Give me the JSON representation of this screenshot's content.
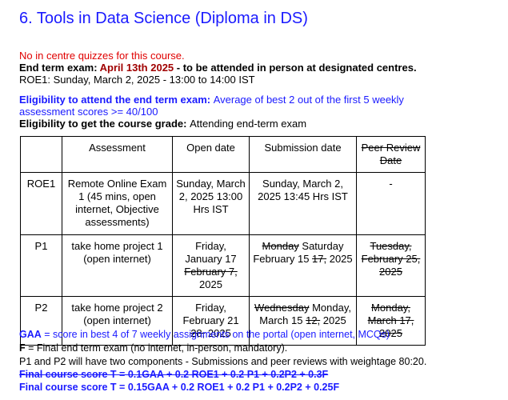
{
  "title": "6. Tools in Data Science (Diploma in DS)",
  "notice_no_quiz": "No in centre quizzes for this course.",
  "end_term": {
    "label": "End term exam: ",
    "date": "April 13th 2025",
    "rest": " - to be attended in person at designated centres."
  },
  "roe1_line": "ROE1: Sunday, March 2, 2025 -  13:00 to 14:00 IST",
  "eligibility_exam": {
    "label": "Eligibility to attend the end term exam: ",
    "text": "Average of best 2 out of the first 5 weekly assessment scores >= 40/100"
  },
  "eligibility_grade": {
    "label": "Eligibility to get the course grade: ",
    "text": "Attending end-term exam"
  },
  "table": {
    "headers": {
      "col0": "",
      "assessment": "Assessment",
      "open_date": "Open date",
      "submission_date": "Submission date",
      "peer_review": "Peer Review Date"
    },
    "rows": [
      {
        "id": "ROE1",
        "assessment": "Remote Online Exam 1 (45 mins, open internet, Objective assessments)",
        "open_date": "Sunday, March 2, 2025 13:00 Hrs IST",
        "submission": "Sunday, March 2, 2025 13:45 Hrs IST",
        "peer_review": "-"
      },
      {
        "id": "P1",
        "assessment": "take home project 1 (open internet)",
        "open_date_pre": "Friday, January 17 ",
        "open_date_struck": "February 7,",
        "open_date_post": " 2025",
        "submission_struck": "Monday",
        "submission_mid": " Saturday February 15 ",
        "submission_struck2": "17,",
        "submission_post": " 2025",
        "peer_review_struck": "Tuesday, February 25, 2025"
      },
      {
        "id": "P2",
        "assessment": "take home project 2 (open internet)",
        "open_date_pre": "Friday, February 21 ",
        "open_date_struck": "28,",
        "open_date_post": " 2025",
        "submission_struck": "Wednesday",
        "submission_mid": " Monday, March 15 ",
        "submission_struck2": "12,",
        "submission_post": " 2025",
        "peer_review_struck": "Monday, March 17, 2025"
      }
    ]
  },
  "gaa": {
    "label": "GAA",
    "text": " = score in best 4 of 7 weekly assignments on the portal (open internet, MCQs)"
  },
  "f_line": {
    "label": "F",
    "text": " = Final end term exam (no internet, in-person, mandatory)."
  },
  "p_line": "P1 and P2 will have two components - Submissions and peer reviews with weightage 80:20.",
  "formula_old": "Final course score T = 0.1GAA + 0.2 ROE1 + 0.2 P1 + 0.2P2 + 0.3F",
  "formula_new": "Final course score T = 0.15GAA + 0.2 ROE1 + 0.2 P1 + 0.2P2 + 0.25F"
}
